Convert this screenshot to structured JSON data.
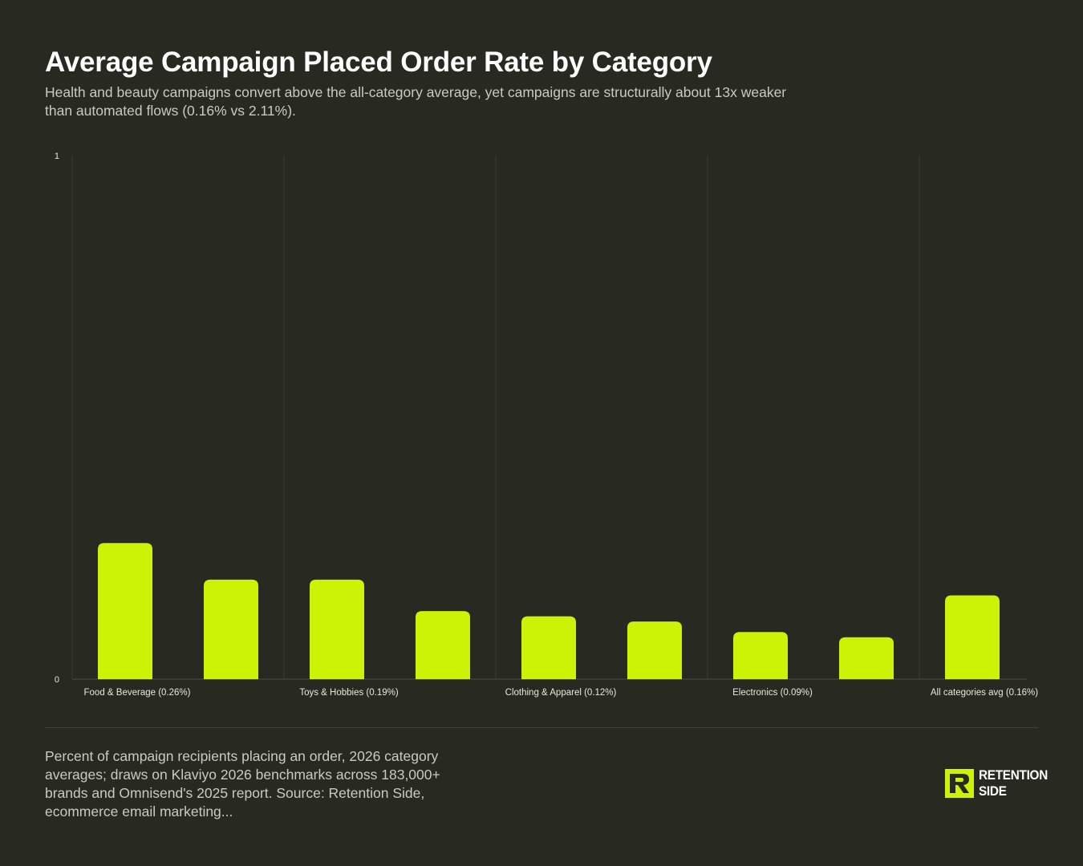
{
  "header": {
    "title": "Average Campaign Placed Order Rate by Category",
    "subtitle": "Health and beauty campaigns convert above the all-category average, yet campaigns are structurally about 13x weaker than automated flows (0.16% vs 2.11%)."
  },
  "footer": {
    "note": "Percent of campaign recipients placing an order, 2026 category averages; draws on Klaviyo 2026 benchmarks across 183,000+ brands and Omnisend's 2025 report. Source: Retention Side, ecommerce email marketing...",
    "logo_line1": "RETENTION",
    "logo_line2": "SIDE"
  },
  "colors": {
    "background": "#282a22",
    "bar": "#ccf205",
    "grid": "#3a3c33",
    "axis_text": "#e6e7e0",
    "logo_accent": "#ccf205"
  },
  "chart_data": {
    "type": "bar",
    "title": "",
    "xlabel": "",
    "ylabel": "",
    "ylim": [
      0,
      1
    ],
    "y_ticks": [
      "0",
      "1"
    ],
    "categories": [
      "Food & Beverage (0.26%)",
      "",
      "Toys & Hobbies (0.19%)",
      "",
      "Clothing & Apparel (0.12%)",
      "",
      "Electronics (0.09%)",
      "",
      "All categories avg (0.16%)"
    ],
    "values": [
      0.26,
      0.19,
      0.19,
      0.13,
      0.12,
      0.11,
      0.09,
      0.08,
      0.16
    ],
    "grid": "vertical",
    "legend": "none"
  }
}
